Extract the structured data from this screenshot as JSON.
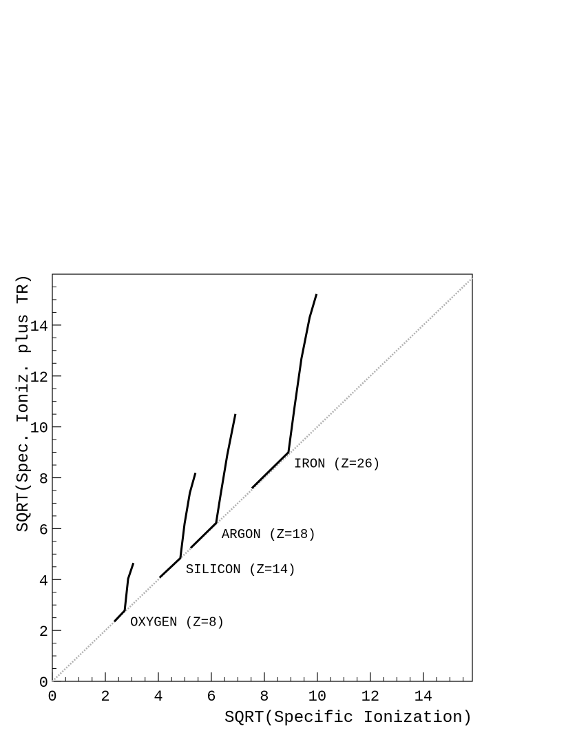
{
  "chart_data": {
    "type": "line",
    "x_label": "SQRT(Specific Ionization)",
    "y_label": "SQRT(Spec. Ioniz. plus TR)",
    "xlim": [
      0,
      15.85
    ],
    "ylim": [
      0,
      16
    ],
    "xticks": [
      0,
      2,
      4,
      6,
      8,
      10,
      12,
      14
    ],
    "yticks": [
      0,
      2,
      4,
      6,
      8,
      10,
      12,
      14
    ],
    "reference_line": {
      "x": [
        0,
        15.85
      ],
      "values": [
        0,
        15.85
      ],
      "color": "#b0b0b0"
    },
    "series": [
      {
        "name": "OXYGEN (Z=8)",
        "color": "#000000",
        "x": [
          2.34,
          2.73,
          2.86,
          3.06
        ],
        "values": [
          2.35,
          2.78,
          4.03,
          4.65
        ]
      },
      {
        "name": "SILICON (Z=14)",
        "color": "#000000",
        "x": [
          4.05,
          4.83,
          4.99,
          5.19,
          5.4
        ],
        "values": [
          4.08,
          4.84,
          6.19,
          7.41,
          8.19
        ]
      },
      {
        "name": "ARGON (Z=18)",
        "color": "#000000",
        "x": [
          5.22,
          6.18,
          6.34,
          6.6,
          6.91
        ],
        "values": [
          5.24,
          6.22,
          7.27,
          8.89,
          10.51
        ]
      },
      {
        "name": "IRON (Z=26)",
        "color": "#000000",
        "x": [
          7.53,
          8.91,
          9.14,
          9.4,
          9.71,
          9.97
        ],
        "values": [
          7.59,
          9.0,
          10.78,
          12.68,
          14.3,
          15.22
        ]
      }
    ]
  }
}
